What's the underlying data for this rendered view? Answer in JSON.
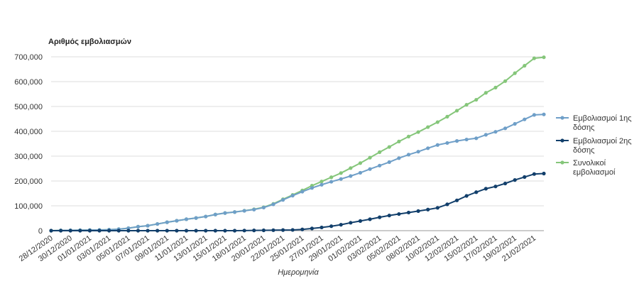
{
  "chart_data": {
    "type": "line",
    "ylabel": "Αριθμός εμβολιασμών",
    "xlabel": "Ημερομηνία",
    "ylim": [
      0,
      700000
    ],
    "yticks": [
      0,
      100000,
      200000,
      300000,
      400000,
      500000,
      600000,
      700000
    ],
    "ytick_labels": [
      "0",
      "100,000",
      "200,000",
      "300,000",
      "400,000",
      "500,000",
      "600,000",
      "700,000"
    ],
    "grid": true,
    "legend_position": "right",
    "x": [
      "28/12/2020",
      "29/12/2020",
      "30/12/2020",
      "31/12/2020",
      "01/01/2021",
      "02/01/2021",
      "03/01/2021",
      "04/01/2021",
      "05/01/2021",
      "06/01/2021",
      "07/01/2021",
      "08/01/2021",
      "09/01/2021",
      "10/01/2021",
      "11/01/2021",
      "12/01/2021",
      "13/01/2021",
      "14/01/2021",
      "15/01/2021",
      "16/01/2021",
      "18/01/2021",
      "19/01/2021",
      "20/01/2021",
      "21/01/2021",
      "22/01/2021",
      "23/01/2021",
      "25/01/2021",
      "26/01/2021",
      "27/01/2021",
      "28/01/2021",
      "29/01/2021",
      "30/01/2021",
      "01/02/2021",
      "02/02/2021",
      "03/02/2021",
      "04/02/2021",
      "05/02/2021",
      "06/02/2021",
      "08/02/2021",
      "09/02/2021",
      "10/02/2021",
      "11/02/2021",
      "12/02/2021",
      "13/02/2021",
      "15/02/2021",
      "16/02/2021",
      "17/02/2021",
      "18/02/2021",
      "19/02/2021",
      "20/02/2021",
      "21/02/2021",
      "22/02/2021"
    ],
    "x_tick_labels": [
      "28/12/2020",
      "30/12/2020",
      "01/01/2021",
      "03/01/2021",
      "05/01/2021",
      "07/01/2021",
      "09/01/2021",
      "11/01/2021",
      "13/01/2021",
      "15/01/2021",
      "18/01/2021",
      "20/01/2021",
      "22/01/2021",
      "25/01/2021",
      "27/01/2021",
      "29/01/2021",
      "01/02/2021",
      "03/02/2021",
      "05/02/2021",
      "08/02/2021",
      "10/02/2021",
      "12/02/2021",
      "15/02/2021",
      "17/02/2021",
      "19/02/2021",
      "21/02/2021"
    ],
    "series": [
      {
        "name": "Εμβολιασμοί 1ης δόσης",
        "color": "#6f9fc8",
        "values": [
          0,
          1000,
          1500,
          2000,
          2500,
          3000,
          4000,
          6000,
          10000,
          16000,
          20000,
          27000,
          34000,
          40000,
          46000,
          51000,
          57000,
          65000,
          71000,
          75000,
          80000,
          85000,
          93000,
          106000,
          124000,
          141000,
          157000,
          172000,
          185000,
          197000,
          208000,
          220000,
          233000,
          248000,
          262000,
          276000,
          292000,
          306000,
          318000,
          332000,
          345000,
          353000,
          361000,
          367000,
          372000,
          386000,
          398000,
          412000,
          430000,
          448000,
          466000,
          468000
        ]
      },
      {
        "name": "Εμβολιασμοί 2ης δόσης",
        "color": "#123f6b",
        "values": [
          0,
          0,
          0,
          0,
          0,
          0,
          0,
          0,
          0,
          0,
          0,
          0,
          0,
          0,
          0,
          0,
          0,
          0,
          0,
          0,
          500,
          1000,
          1500,
          2000,
          2500,
          3000,
          5000,
          9000,
          13000,
          18000,
          24000,
          32000,
          39000,
          46000,
          54000,
          61000,
          67000,
          73000,
          79000,
          85000,
          92000,
          106000,
          122000,
          140000,
          155000,
          169000,
          178000,
          190000,
          204000,
          216000,
          228000,
          230000
        ]
      },
      {
        "name": "Συνολικοί εμβολιασμοί",
        "color": "#85c67a",
        "values": [
          0,
          1000,
          1500,
          2000,
          2500,
          3000,
          4000,
          6000,
          10000,
          16000,
          20000,
          27000,
          34000,
          40000,
          46000,
          51000,
          57000,
          65000,
          71000,
          75000,
          80500,
          86000,
          94500,
          108000,
          126500,
          144000,
          162000,
          181000,
          198000,
          215000,
          232000,
          252000,
          272000,
          294000,
          316000,
          337000,
          359000,
          379000,
          397000,
          417000,
          437000,
          459000,
          483000,
          507000,
          527000,
          555000,
          576000,
          602000,
          634000,
          664000,
          694000,
          698000
        ]
      }
    ]
  }
}
